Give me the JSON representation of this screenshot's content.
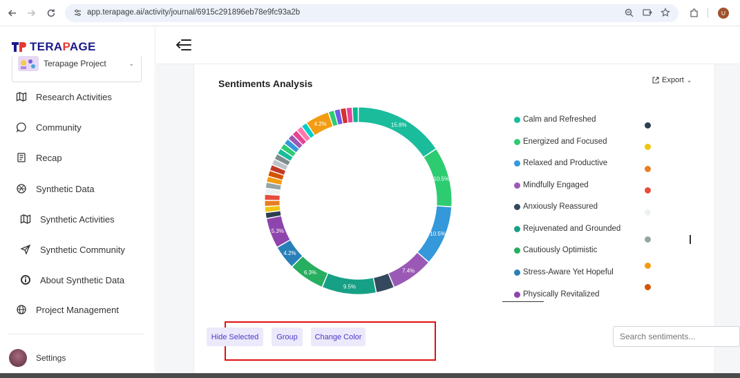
{
  "browser": {
    "url": "app.terapage.ai/activity/journal/6915c291896eb78e9fc93a2b",
    "profile_initial": "U"
  },
  "logo": {
    "prefix": "TERA",
    "amp": "P",
    "suffix": "AGE"
  },
  "project": {
    "name": "Terapage Project"
  },
  "nav": [
    {
      "label": "Research Activities",
      "icon": "map-icon"
    },
    {
      "label": "Community",
      "icon": "chat-bubble-icon"
    },
    {
      "label": "Recap",
      "icon": "document-icon"
    },
    {
      "label": "Synthetic Data",
      "icon": "aperture-icon"
    },
    {
      "label": "Synthetic Activities",
      "icon": "map-icon"
    },
    {
      "label": "Synthetic Community",
      "icon": "send-icon"
    },
    {
      "label": "About Synthetic Data",
      "icon": "info-icon"
    },
    {
      "label": "Project Management",
      "icon": "globe-icon"
    }
  ],
  "settings": {
    "label": "Settings"
  },
  "card": {
    "title": "Sentiments Analysis",
    "export_label": "Export"
  },
  "legend": [
    {
      "label": "Calm and Refreshed",
      "color": "#1abc9c"
    },
    {
      "label": "Energized and Focused",
      "color": "#2ecc71"
    },
    {
      "label": "Relaxed and Productive",
      "color": "#3498db"
    },
    {
      "label": "Mindfully Engaged",
      "color": "#9b59b6"
    },
    {
      "label": "Anxiously Reassured",
      "color": "#34495e"
    },
    {
      "label": "Rejuvenated and Grounded",
      "color": "#16a085"
    },
    {
      "label": "Cautiously Optimistic",
      "color": "#27ae60"
    },
    {
      "label": "Stress-Aware Yet Hopeful",
      "color": "#2980b9"
    },
    {
      "label": "Physically Revitalized",
      "color": "#8e44ad"
    }
  ],
  "legend_right_colors": [
    "#2c3e50",
    "#f1c40f",
    "#e67e22",
    "#e74c3c",
    "#ecf0f1",
    "#95a5a6",
    "#f39c12",
    "#d35400"
  ],
  "chart_data": {
    "type": "pie",
    "donut": true,
    "slices": [
      {
        "value": 15.8,
        "label": "15.8%",
        "color": "#1abc9c"
      },
      {
        "value": 10.5,
        "label": "10.5%",
        "color": "#2ecc71"
      },
      {
        "value": 10.5,
        "label": "10.5%",
        "color": "#3498db"
      },
      {
        "value": 7.4,
        "label": "7.4%",
        "color": "#9b59b6"
      },
      {
        "value": 3.2,
        "label": "",
        "color": "#34495e"
      },
      {
        "value": 9.5,
        "label": "9.5%",
        "color": "#16a085"
      },
      {
        "value": 6.3,
        "label": "6.3%",
        "color": "#27ae60"
      },
      {
        "value": 4.2,
        "label": "4.2%",
        "color": "#2980b9"
      },
      {
        "value": 5.3,
        "label": "5.3%",
        "color": "#8e44ad"
      },
      {
        "value": 1.05,
        "label": "",
        "color": "#2c3e50"
      },
      {
        "value": 1.05,
        "label": "",
        "color": "#f1c40f"
      },
      {
        "value": 1.05,
        "label": "",
        "color": "#e67e22"
      },
      {
        "value": 1.05,
        "label": "",
        "color": "#e74c3c"
      },
      {
        "value": 1.05,
        "label": "",
        "color": "#ecf0f1"
      },
      {
        "value": 1.05,
        "label": "",
        "color": "#95a5a6"
      },
      {
        "value": 1.05,
        "label": "",
        "color": "#f39c12"
      },
      {
        "value": 1.05,
        "label": "",
        "color": "#d35400"
      },
      {
        "value": 1.05,
        "label": "",
        "color": "#c0392b"
      },
      {
        "value": 1.05,
        "label": "",
        "color": "#bdc3c7"
      },
      {
        "value": 1.05,
        "label": "",
        "color": "#7f8c8d"
      },
      {
        "value": 1.05,
        "label": "",
        "color": "#1abc9c"
      },
      {
        "value": 1.05,
        "label": "",
        "color": "#2ecc71"
      },
      {
        "value": 1.05,
        "label": "",
        "color": "#3498db"
      },
      {
        "value": 1.05,
        "label": "",
        "color": "#9b59b6"
      },
      {
        "value": 1.05,
        "label": "",
        "color": "#e84393"
      },
      {
        "value": 1.05,
        "label": "",
        "color": "#fd79a8"
      },
      {
        "value": 1.05,
        "label": "",
        "color": "#00cec9"
      },
      {
        "value": 4.2,
        "label": "4.2%",
        "color": "#f39c12"
      },
      {
        "value": 1.05,
        "label": "",
        "color": "#2ecc71"
      },
      {
        "value": 1.05,
        "label": "",
        "color": "#6c5ce7"
      },
      {
        "value": 1.05,
        "label": "",
        "color": "#d63031"
      },
      {
        "value": 1.05,
        "label": "",
        "color": "#e84393"
      },
      {
        "value": 1.05,
        "label": "",
        "color": "#00b894"
      }
    ]
  },
  "actions": {
    "hide": "Hide Selected",
    "group": "Group",
    "color": "Change Color"
  },
  "search": {
    "placeholder": "Search sentiments..."
  }
}
